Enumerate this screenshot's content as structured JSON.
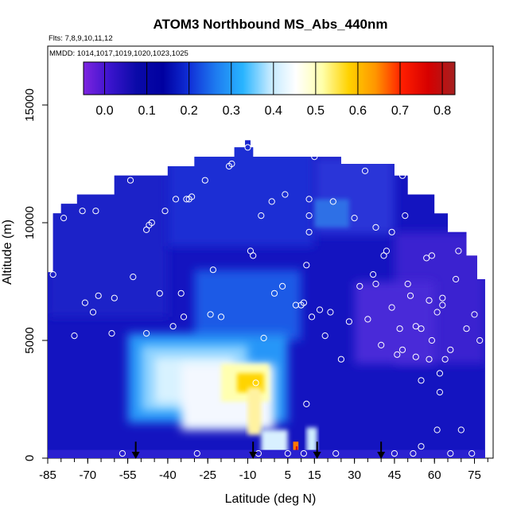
{
  "chart_data": {
    "type": "heatmap",
    "title": "ATOM3 Northbound MS_Abs_440nm",
    "flights_label": "Flts: 7,8,9,10,11,12",
    "dates_label": "MMDD: 1014,1017,1019,1020,1023,1025",
    "xlabel": "Latitude (deg N)",
    "ylabel": "Altitude (m)",
    "xlim": [
      -85,
      82
    ],
    "ylim": [
      0,
      17500
    ],
    "x_ticks": [
      "-85",
      "-70",
      "-55",
      "-40",
      "-25",
      "-10",
      "5",
      "15",
      "30",
      "45",
      "60",
      "75"
    ],
    "y_ticks": [
      "0",
      "5000",
      "10000",
      "15000"
    ],
    "colorbar": {
      "min": -0.05,
      "max": 0.83,
      "tick_labels": [
        "0.0",
        "0.1",
        "0.2",
        "0.3",
        "0.4",
        "0.5",
        "0.6",
        "0.7",
        "0.8"
      ],
      "colors": [
        "#7d24e0",
        "#3a14cc",
        "#0a0aa8",
        "#0000a0",
        "#1030d8",
        "#1e7cf0",
        "#28b4ff",
        "#bfe8ff",
        "#ffffff",
        "#ffffaa",
        "#ffd200",
        "#ff9600",
        "#ff1e00",
        "#d60000",
        "#a52020"
      ]
    },
    "arrows_latitude": [
      -52,
      -8,
      16,
      40
    ],
    "field_description_cells": [
      {
        "lat_range": [
          -55,
          -15
        ],
        "alt_range": [
          2000,
          5000
        ],
        "value_range": [
          0.25,
          0.4
        ]
      },
      {
        "lat_range": [
          -12,
          -2
        ],
        "alt_range": [
          2500,
          4000
        ],
        "value_range": [
          0.45,
          0.55
        ]
      },
      {
        "lat_range": [
          7,
          10
        ],
        "alt_range": [
          0,
          700
        ],
        "value_range": [
          0.6,
          0.7
        ]
      },
      {
        "lat_range": [
          -75,
          78
        ],
        "alt_range": [
          6000,
          13000
        ],
        "value_range": [
          0.0,
          0.1
        ]
      }
    ],
    "points": [
      [
        -83,
        7800
      ],
      [
        -79,
        10200
      ],
      [
        -75,
        5200
      ],
      [
        -72,
        10500
      ],
      [
        -71,
        6600
      ],
      [
        -68,
        6200
      ],
      [
        -67,
        10500
      ],
      [
        -66,
        6900
      ],
      [
        -61,
        5300
      ],
      [
        -60,
        6800
      ],
      [
        -57,
        200
      ],
      [
        -54,
        11800
      ],
      [
        -53,
        7700
      ],
      [
        -48,
        5300
      ],
      [
        -48,
        9700
      ],
      [
        -47,
        9900
      ],
      [
        -46,
        10000
      ],
      [
        -43,
        7000
      ],
      [
        -41,
        10500
      ],
      [
        -38,
        5600
      ],
      [
        -37,
        11000
      ],
      [
        -35,
        7000
      ],
      [
        -34,
        6000
      ],
      [
        -33,
        11000
      ],
      [
        -32,
        11000
      ],
      [
        -31,
        11100
      ],
      [
        -29,
        200
      ],
      [
        -26,
        11800
      ],
      [
        -24,
        6100
      ],
      [
        -23,
        8000
      ],
      [
        -20,
        6000
      ],
      [
        -17,
        12400
      ],
      [
        -16,
        12500
      ],
      [
        -10,
        13200
      ],
      [
        -9,
        8800
      ],
      [
        -8,
        8600
      ],
      [
        -7,
        3200
      ],
      [
        -6,
        200
      ],
      [
        -5,
        10300
      ],
      [
        -4,
        5100
      ],
      [
        -1,
        10900
      ],
      [
        0,
        7000
      ],
      [
        3,
        7300
      ],
      [
        4,
        11200
      ],
      [
        5,
        200
      ],
      [
        8,
        6500
      ],
      [
        10,
        6500
      ],
      [
        11,
        6600
      ],
      [
        11,
        200
      ],
      [
        12,
        2300
      ],
      [
        12,
        8200
      ],
      [
        13,
        10300
      ],
      [
        13,
        9600
      ],
      [
        13,
        11000
      ],
      [
        14,
        6000
      ],
      [
        15,
        12800
      ],
      [
        17,
        6300
      ],
      [
        19,
        5200
      ],
      [
        21,
        6200
      ],
      [
        22,
        10900
      ],
      [
        23,
        200
      ],
      [
        25,
        4200
      ],
      [
        28,
        5800
      ],
      [
        30,
        10200
      ],
      [
        32,
        7300
      ],
      [
        34,
        12200
      ],
      [
        35,
        5900
      ],
      [
        37,
        7800
      ],
      [
        38,
        9800
      ],
      [
        38,
        7400
      ],
      [
        40,
        4800
      ],
      [
        41,
        8600
      ],
      [
        42,
        8800
      ],
      [
        44,
        9600
      ],
      [
        44,
        6400
      ],
      [
        45,
        200
      ],
      [
        46,
        4400
      ],
      [
        47,
        5500
      ],
      [
        48,
        4600
      ],
      [
        48,
        12000
      ],
      [
        49,
        10300
      ],
      [
        50,
        7400
      ],
      [
        51,
        6900
      ],
      [
        52,
        200
      ],
      [
        53,
        5600
      ],
      [
        53,
        4300
      ],
      [
        55,
        500
      ],
      [
        55,
        5500
      ],
      [
        55,
        3300
      ],
      [
        57,
        8500
      ],
      [
        58,
        6700
      ],
      [
        58,
        4200
      ],
      [
        59,
        8600
      ],
      [
        59,
        5000
      ],
      [
        61,
        6200
      ],
      [
        61,
        1200
      ],
      [
        62,
        2800
      ],
      [
        62,
        3600
      ],
      [
        63,
        6800
      ],
      [
        63,
        6500
      ],
      [
        64,
        4200
      ],
      [
        66,
        200
      ],
      [
        66,
        4600
      ],
      [
        68,
        7600
      ],
      [
        69,
        8800
      ],
      [
        70,
        1200
      ],
      [
        72,
        5500
      ],
      [
        74,
        200
      ],
      [
        75,
        6100
      ],
      [
        76,
        9000
      ],
      [
        77,
        5000
      ]
    ]
  }
}
